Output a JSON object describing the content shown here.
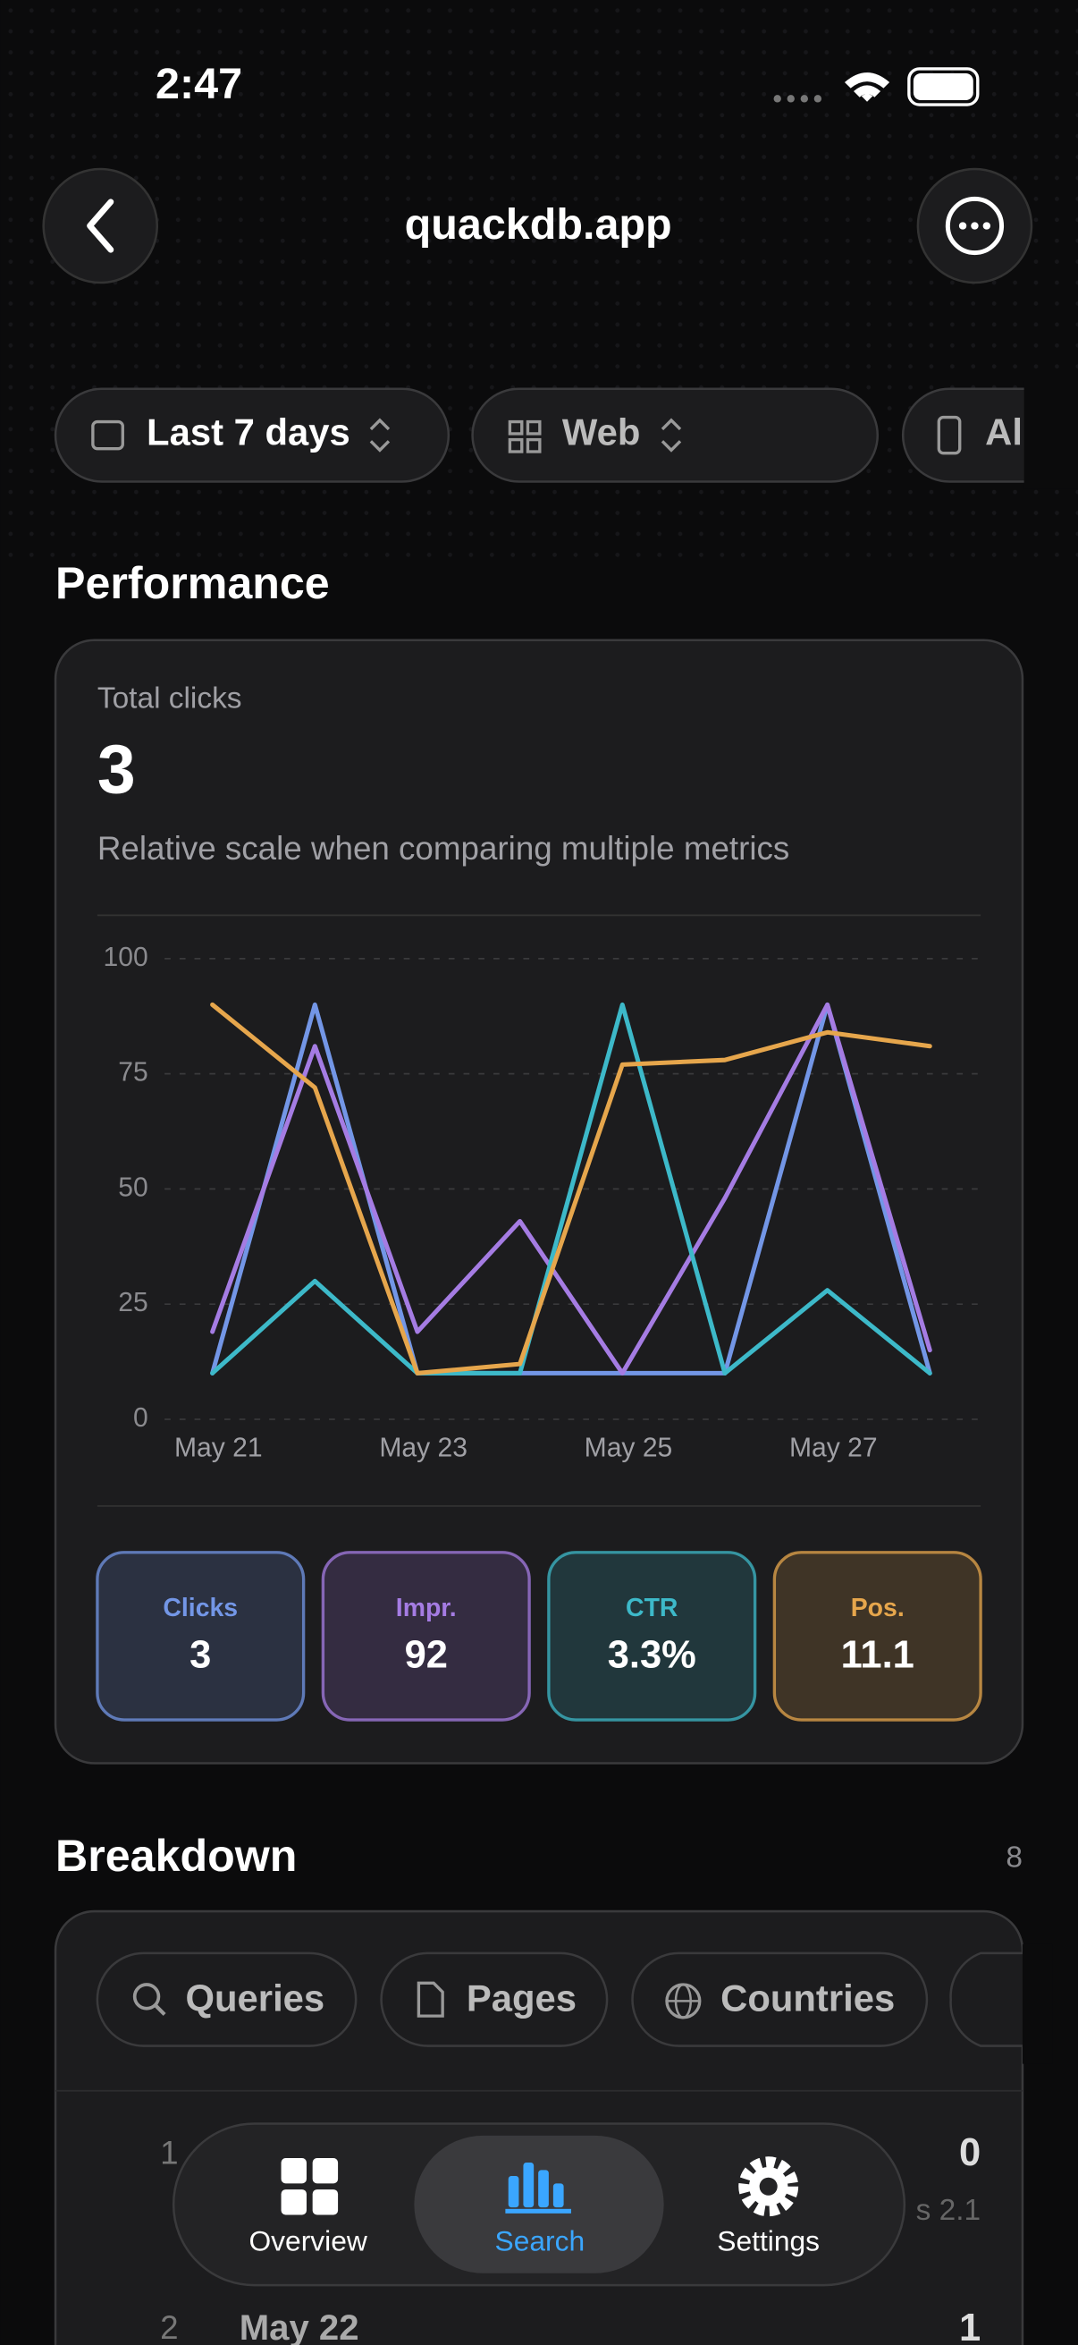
{
  "status_bar": {
    "time": "2:47"
  },
  "header": {
    "title": "quackdb.app"
  },
  "filters": [
    "Last 7 days",
    "Web",
    "Al"
  ],
  "performance": {
    "heading": "Performance",
    "metric_label": "Total clicks",
    "metric_value": "3",
    "note": "Relative scale when comparing multiple metrics",
    "metric_values": [
      "3",
      "92",
      "3.3%",
      "11.1"
    ]
  },
  "chart_data": {
    "type": "line",
    "categories": [
      "May 21",
      null,
      "May 23",
      null,
      "May 25",
      null,
      "May 27",
      null
    ],
    "ylim": [
      0,
      100
    ],
    "yticks": [
      0,
      25,
      50,
      75,
      100
    ],
    "grid": true,
    "series": [
      {
        "name": "Clicks",
        "color": "#7396e6",
        "values": [
          10,
          90,
          10,
          10,
          10,
          10,
          90,
          10
        ]
      },
      {
        "name": "Impr.",
        "color": "#a57ce3",
        "values": [
          19,
          81,
          19,
          43,
          10,
          48,
          90,
          15
        ]
      },
      {
        "name": "CTR",
        "color": "#3db9c9",
        "values": [
          10,
          30,
          10,
          10,
          90,
          10,
          28,
          10
        ]
      },
      {
        "name": "Pos.",
        "color": "#e6a64c",
        "values": [
          90,
          72,
          10,
          12,
          77,
          78,
          84,
          81
        ]
      }
    ]
  },
  "breakdown": {
    "heading": "Breakdown",
    "count": "8",
    "tabs": [
      "Queries",
      "Pages",
      "Countries"
    ],
    "rows": [
      {
        "rank": "1",
        "value": "0",
        "meta": "s 2.1"
      },
      {
        "rank": "2",
        "label": "May 22",
        "value": "1"
      }
    ]
  },
  "tab_bar": [
    "Overview",
    "Search",
    "Settings"
  ]
}
